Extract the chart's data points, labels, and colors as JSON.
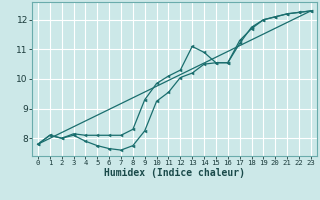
{
  "xlabel": "Humidex (Indice chaleur)",
  "xlim": [
    -0.5,
    23.5
  ],
  "ylim": [
    7.4,
    12.6
  ],
  "yticks": [
    8,
    9,
    10,
    11,
    12
  ],
  "xticks": [
    0,
    1,
    2,
    3,
    4,
    5,
    6,
    7,
    8,
    9,
    10,
    11,
    12,
    13,
    14,
    15,
    16,
    17,
    18,
    19,
    20,
    21,
    22,
    23
  ],
  "bg_color": "#cce8e8",
  "grid_color": "#ffffff",
  "line_color": "#1a6e6e",
  "line1_x": [
    0,
    1,
    2,
    3,
    4,
    5,
    6,
    7,
    8,
    9,
    10,
    11,
    12,
    13,
    14,
    15,
    16,
    17,
    18,
    19,
    20,
    21,
    22,
    23
  ],
  "line1_y": [
    7.8,
    8.1,
    8.0,
    8.1,
    7.9,
    7.75,
    7.65,
    7.6,
    7.75,
    8.25,
    9.25,
    9.55,
    10.05,
    10.2,
    10.5,
    10.55,
    10.55,
    11.2,
    11.75,
    12.0,
    12.1,
    12.2,
    12.25,
    12.3
  ],
  "line2_x": [
    0,
    1,
    2,
    3,
    4,
    5,
    6,
    7,
    8,
    9,
    10,
    11,
    12,
    13,
    14,
    15,
    16,
    17,
    18,
    19,
    20,
    21,
    22,
    23
  ],
  "line2_y": [
    7.8,
    8.1,
    8.0,
    8.15,
    8.1,
    8.1,
    8.1,
    8.1,
    8.3,
    9.3,
    9.85,
    10.1,
    10.3,
    11.1,
    10.9,
    10.55,
    10.55,
    11.3,
    11.7,
    12.0,
    12.1,
    12.2,
    12.25,
    12.3
  ],
  "line3_x": [
    0,
    23
  ],
  "line3_y": [
    7.8,
    12.3
  ],
  "xtick_labels": [
    "0",
    "1",
    "2",
    "3",
    "4",
    "5",
    "6",
    "7",
    "8",
    "9",
    "10",
    "11",
    "12",
    "13",
    "14",
    "15",
    "16",
    "17",
    "18",
    "19",
    "20",
    "21",
    "22",
    "23"
  ]
}
